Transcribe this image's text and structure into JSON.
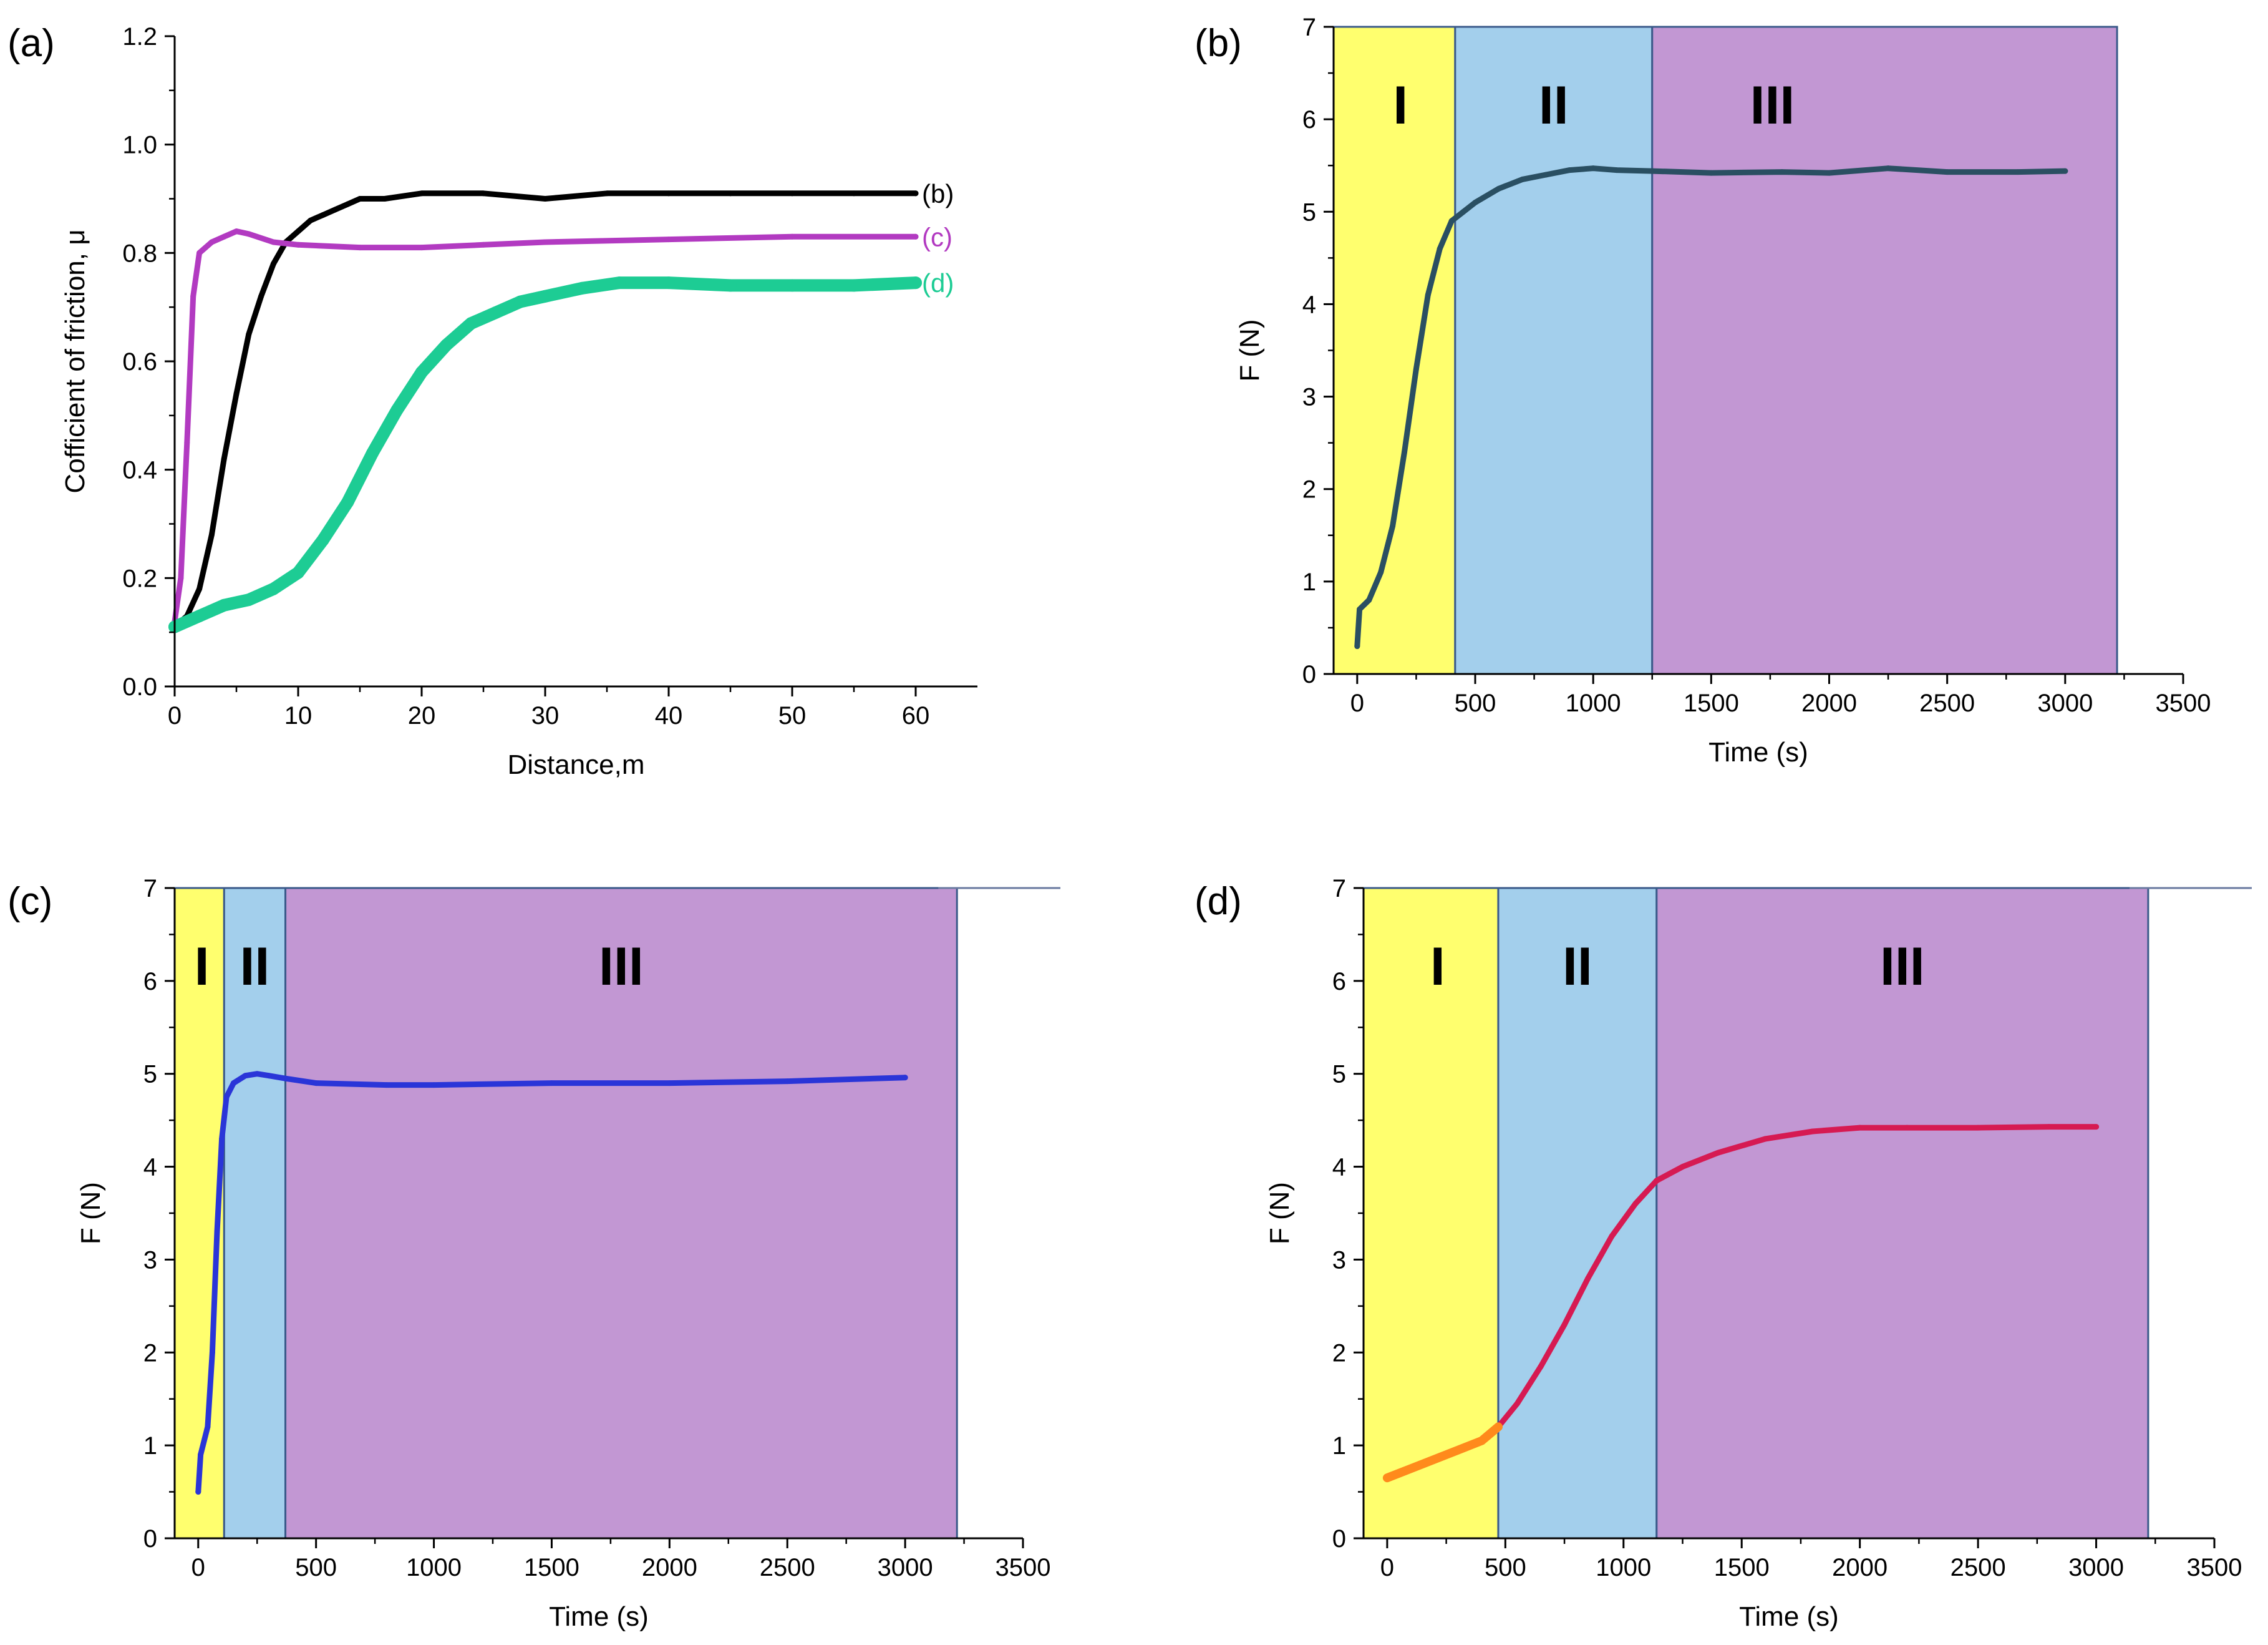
{
  "chart_data": [
    {
      "panel": "(a)",
      "type": "line",
      "xlabel": "Distance,m",
      "ylabel": "Cofficient of friction, μ",
      "xlim": [
        0,
        65
      ],
      "ylim": [
        0,
        1.2
      ],
      "xticks": [
        "0",
        "10",
        "20",
        "30",
        "40",
        "50",
        "60"
      ],
      "yticks": [
        "0.0",
        "0.2",
        "0.4",
        "0.6",
        "0.8",
        "1.0",
        "1.2"
      ],
      "grid": false,
      "series": [
        {
          "name": "(b)",
          "color": "#000000",
          "points": [
            [
              0,
              0.11
            ],
            [
              1,
              0.13
            ],
            [
              2,
              0.18
            ],
            [
              3,
              0.28
            ],
            [
              4,
              0.42
            ],
            [
              5,
              0.54
            ],
            [
              6,
              0.65
            ],
            [
              7,
              0.72
            ],
            [
              8,
              0.78
            ],
            [
              9,
              0.82
            ],
            [
              10,
              0.84
            ],
            [
              11,
              0.86
            ],
            [
              12,
              0.87
            ],
            [
              13,
              0.88
            ],
            [
              14,
              0.89
            ],
            [
              15,
              0.9
            ],
            [
              17,
              0.9
            ],
            [
              20,
              0.91
            ],
            [
              25,
              0.91
            ],
            [
              30,
              0.9
            ],
            [
              35,
              0.91
            ],
            [
              40,
              0.91
            ],
            [
              45,
              0.91
            ],
            [
              50,
              0.91
            ],
            [
              55,
              0.91
            ],
            [
              60,
              0.91
            ]
          ]
        },
        {
          "name": "(c)",
          "color": "#b23ac1",
          "points": [
            [
              0,
              0.12
            ],
            [
              0.5,
              0.2
            ],
            [
              1,
              0.45
            ],
            [
              1.5,
              0.72
            ],
            [
              2,
              0.8
            ],
            [
              3,
              0.82
            ],
            [
              4,
              0.83
            ],
            [
              5,
              0.84
            ],
            [
              6,
              0.835
            ],
            [
              8,
              0.82
            ],
            [
              10,
              0.815
            ],
            [
              15,
              0.81
            ],
            [
              20,
              0.81
            ],
            [
              25,
              0.815
            ],
            [
              30,
              0.82
            ],
            [
              40,
              0.825
            ],
            [
              50,
              0.83
            ],
            [
              60,
              0.83
            ]
          ]
        },
        {
          "name": "(d)",
          "color": "#1dcc94",
          "points": [
            [
              0,
              0.11
            ],
            [
              2,
              0.13
            ],
            [
              4,
              0.15
            ],
            [
              6,
              0.16
            ],
            [
              8,
              0.18
            ],
            [
              10,
              0.21
            ],
            [
              12,
              0.27
            ],
            [
              14,
              0.34
            ],
            [
              16,
              0.43
            ],
            [
              18,
              0.51
            ],
            [
              20,
              0.58
            ],
            [
              22,
              0.63
            ],
            [
              24,
              0.67
            ],
            [
              26,
              0.69
            ],
            [
              28,
              0.71
            ],
            [
              30,
              0.72
            ],
            [
              33,
              0.735
            ],
            [
              36,
              0.745
            ],
            [
              40,
              0.745
            ],
            [
              45,
              0.74
            ],
            [
              50,
              0.74
            ],
            [
              55,
              0.74
            ],
            [
              60,
              0.745
            ]
          ]
        }
      ]
    },
    {
      "panel": "(b)",
      "type": "line",
      "xlabel": "Time (s)",
      "ylabel": "F (N)",
      "xlim": [
        -100,
        3500
      ],
      "ylim": [
        0,
        7
      ],
      "xticks": [
        "0",
        "500",
        "1000",
        "1500",
        "2000",
        "2500",
        "3000",
        "3500"
      ],
      "yticks": [
        "0",
        "1",
        "2",
        "3",
        "4",
        "5",
        "6",
        "7"
      ],
      "regions": [
        {
          "label": "I",
          "x0": -100,
          "x1": 415,
          "color": "#ffff6e"
        },
        {
          "label": "II",
          "x0": 415,
          "x1": 1250,
          "color": "#a3cfec"
        },
        {
          "label": "III",
          "x0": 1250,
          "x1": 3220,
          "color": "#c297d3"
        }
      ],
      "series": [
        {
          "color": "#2a4f62",
          "points": [
            [
              0,
              0.3
            ],
            [
              10,
              0.7
            ],
            [
              50,
              0.8
            ],
            [
              100,
              1.1
            ],
            [
              150,
              1.6
            ],
            [
              200,
              2.4
            ],
            [
              250,
              3.3
            ],
            [
              300,
              4.1
            ],
            [
              350,
              4.6
            ],
            [
              400,
              4.9
            ],
            [
              450,
              5.0
            ],
            [
              500,
              5.1
            ],
            [
              600,
              5.25
            ],
            [
              700,
              5.35
            ],
            [
              800,
              5.4
            ],
            [
              900,
              5.45
            ],
            [
              1000,
              5.47
            ],
            [
              1100,
              5.45
            ],
            [
              1250,
              5.44
            ],
            [
              1500,
              5.42
            ],
            [
              1800,
              5.43
            ],
            [
              2000,
              5.42
            ],
            [
              2250,
              5.47
            ],
            [
              2500,
              5.43
            ],
            [
              2800,
              5.43
            ],
            [
              3000,
              5.44
            ]
          ]
        }
      ]
    },
    {
      "panel": "(c)",
      "type": "line",
      "xlabel": "Time (s)",
      "ylabel": "F (N)",
      "xlim": [
        -100,
        3500
      ],
      "ylim": [
        0,
        7
      ],
      "xticks": [
        "0",
        "500",
        "1000",
        "1500",
        "2000",
        "2500",
        "3000",
        "3500"
      ],
      "yticks": [
        "0",
        "1",
        "2",
        "3",
        "4",
        "5",
        "6",
        "7"
      ],
      "regions": [
        {
          "label": "I",
          "x0": -100,
          "x1": 110,
          "color": "#ffff6e"
        },
        {
          "label": "II",
          "x0": 110,
          "x1": 370,
          "color": "#a3cfec"
        },
        {
          "label": "III",
          "x0": 370,
          "x1": 3220,
          "color": "#c297d3"
        }
      ],
      "series": [
        {
          "color": "#2a35d8",
          "points": [
            [
              0,
              0.5
            ],
            [
              10,
              0.9
            ],
            [
              40,
              1.2
            ],
            [
              60,
              2.0
            ],
            [
              80,
              3.3
            ],
            [
              100,
              4.3
            ],
            [
              120,
              4.75
            ],
            [
              150,
              4.9
            ],
            [
              200,
              4.98
            ],
            [
              250,
              5.0
            ],
            [
              300,
              4.98
            ],
            [
              370,
              4.95
            ],
            [
              500,
              4.9
            ],
            [
              800,
              4.88
            ],
            [
              1000,
              4.88
            ],
            [
              1500,
              4.9
            ],
            [
              2000,
              4.9
            ],
            [
              2500,
              4.92
            ],
            [
              3000,
              4.96
            ]
          ]
        }
      ]
    },
    {
      "panel": "(d)",
      "type": "line",
      "xlabel": "Time (s)",
      "ylabel": "F (N)",
      "xlim": [
        -100,
        3500
      ],
      "ylim": [
        0,
        7
      ],
      "xticks": [
        "0",
        "500",
        "1000",
        "1500",
        "2000",
        "2500",
        "3000",
        "3500"
      ],
      "yticks": [
        "0",
        "1",
        "2",
        "3",
        "4",
        "5",
        "6",
        "7"
      ],
      "regions": [
        {
          "label": "I",
          "x0": -100,
          "x1": 470,
          "color": "#ffff6e"
        },
        {
          "label": "II",
          "x0": 470,
          "x1": 1140,
          "color": "#a3cfec"
        },
        {
          "label": "III",
          "x0": 1140,
          "x1": 3220,
          "color": "#c297d3"
        }
      ],
      "series": [
        {
          "color": "#d61a52",
          "points": [
            [
              0,
              0.65
            ],
            [
              100,
              0.75
            ],
            [
              200,
              0.85
            ],
            [
              300,
              0.95
            ],
            [
              400,
              1.05
            ],
            [
              470,
              1.2
            ],
            [
              550,
              1.45
            ],
            [
              650,
              1.85
            ],
            [
              750,
              2.3
            ],
            [
              850,
              2.8
            ],
            [
              950,
              3.25
            ],
            [
              1050,
              3.6
            ],
            [
              1140,
              3.85
            ],
            [
              1250,
              4.0
            ],
            [
              1400,
              4.15
            ],
            [
              1600,
              4.3
            ],
            [
              1800,
              4.38
            ],
            [
              2000,
              4.42
            ],
            [
              2200,
              4.42
            ],
            [
              2500,
              4.42
            ],
            [
              2800,
              4.43
            ],
            [
              3000,
              4.43
            ]
          ]
        }
      ]
    }
  ],
  "colors": {
    "start_segment_orange": "#ff8a1c"
  }
}
